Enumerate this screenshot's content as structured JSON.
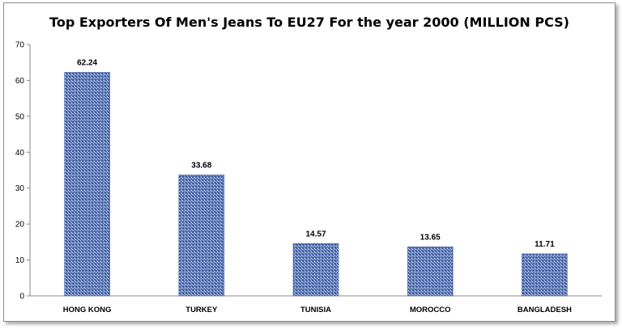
{
  "chart_data": {
    "type": "bar",
    "title": "Top Exporters Of Men's Jeans To EU27 For the year 2000 (MILLION PCS)",
    "categories": [
      "HONG KONG",
      "TURKEY",
      "TUNISIA",
      "MOROCCO",
      "BANGLADESH"
    ],
    "values": [
      62.24,
      33.68,
      14.57,
      13.65,
      11.71
    ],
    "data_labels": [
      "62.24",
      "33.68",
      "14.57",
      "13.65",
      "11.71"
    ],
    "yticks": [
      0,
      10,
      20,
      30,
      40,
      50,
      60,
      70
    ],
    "ylim": [
      0,
      70
    ],
    "xlabel": "",
    "ylabel": "",
    "grid": false,
    "legend": "none",
    "bar_color": "#5b78b8"
  }
}
